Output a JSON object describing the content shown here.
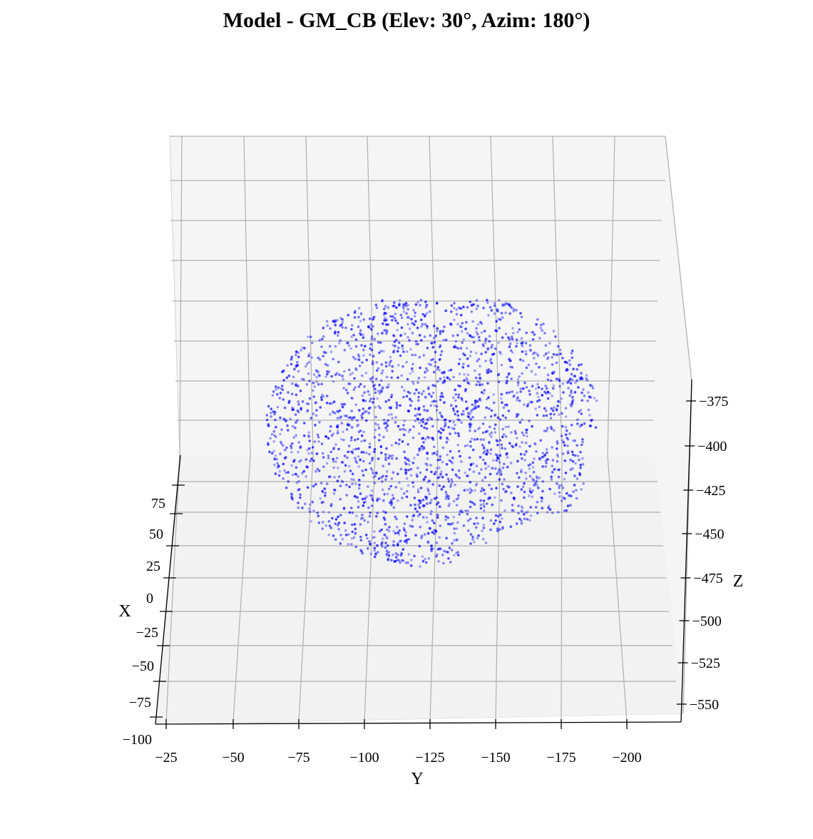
{
  "chart_data": {
    "type": "scatter",
    "title": "Model - GM_CB (Elev: 30°, Azim: 180°)",
    "view": {
      "elev": 30,
      "azim": 180
    },
    "xlabel": "X",
    "ylabel": "Y",
    "zlabel": "Z",
    "x_ticks": [
      "75",
      "50",
      "25",
      "0",
      "−25",
      "−50",
      "−75",
      "−100"
    ],
    "y_ticks": [
      "−25",
      "−50",
      "−75",
      "−100",
      "−125",
      "−150",
      "−175",
      "−200"
    ],
    "z_ticks": [
      "−375",
      "−400",
      "−425",
      "−450",
      "−475",
      "−500",
      "−525",
      "−550"
    ],
    "ylim": [
      -20,
      -220
    ],
    "zlim": [
      -565,
      -355
    ],
    "xlim": [
      -105,
      100
    ],
    "grid": true,
    "series": [
      {
        "color": "#0000ff",
        "alpha": 0.45,
        "marker_size": 2,
        "point_count": 2400,
        "cloud": {
          "shape": "ellipsoid",
          "y_range": [
            -60,
            -190
          ],
          "z_range": [
            -480,
            -370
          ],
          "x_range": [
            -60,
            60
          ]
        }
      }
    ]
  }
}
